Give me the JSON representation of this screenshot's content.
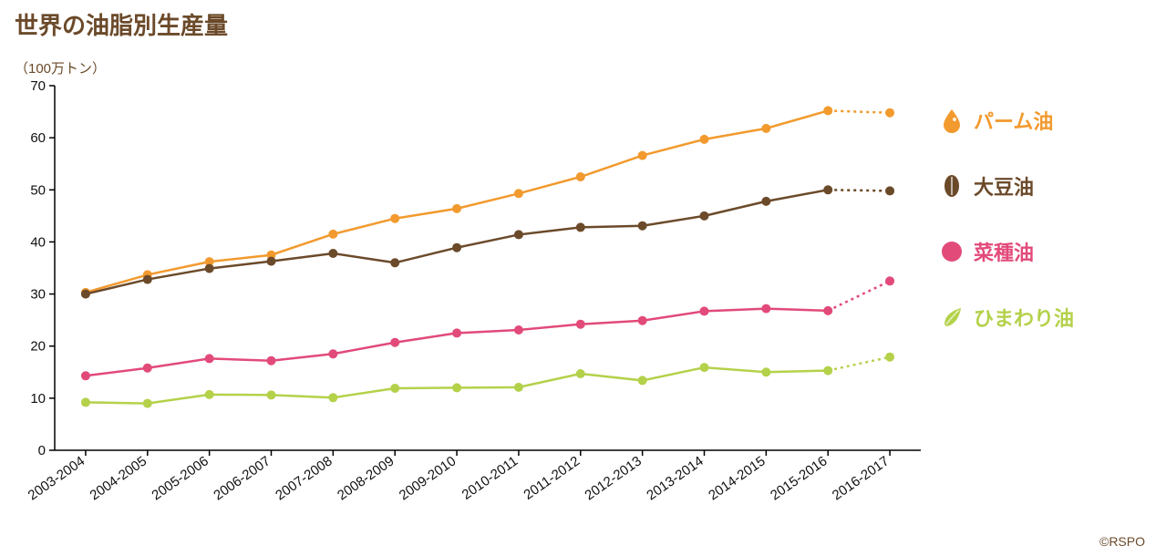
{
  "title": "世界の油脂別生産量",
  "y_axis_label": "（100万トン）",
  "copyright": "©RSPO",
  "chart": {
    "type": "line",
    "background_color": "#ffffff",
    "axis_color": "#000000",
    "ylim": [
      0,
      70
    ],
    "ytick_step": 10,
    "yticks": [
      0,
      10,
      20,
      30,
      40,
      50,
      60,
      70
    ],
    "ytick_fontsize": 15,
    "categories": [
      "2003-2004",
      "2004-2005",
      "2005-2006",
      "2006-2007",
      "2007-2008",
      "2008-2009",
      "2009-2010",
      "2010-2011",
      "2011-2012",
      "2012-2013",
      "2013-2014",
      "2014-2015",
      "2015-2016",
      "2016-2017"
    ],
    "xtick_fontsize": 15,
    "xtick_rotation": -35,
    "line_width": 2.5,
    "marker_size": 5,
    "marker_style": "circle",
    "dashed_last_segment": true,
    "series": [
      {
        "id": "palm",
        "label": "パーム油",
        "color": "#f29a2e",
        "values": [
          30.3,
          33.7,
          36.2,
          37.5,
          41.5,
          44.5,
          46.4,
          49.3,
          52.5,
          56.6,
          59.7,
          61.8,
          65.2,
          64.8
        ]
      },
      {
        "id": "soy",
        "label": "大豆油",
        "color": "#6b4a2a",
        "values": [
          30.0,
          32.8,
          34.9,
          36.3,
          37.8,
          36.0,
          38.9,
          41.4,
          42.8,
          43.1,
          45.0,
          47.8,
          50.0,
          49.8
        ]
      },
      {
        "id": "rapeseed",
        "label": "菜種油",
        "color": "#e24a7a",
        "values": [
          14.3,
          15.8,
          17.6,
          17.2,
          18.5,
          20.7,
          22.5,
          23.1,
          24.2,
          24.9,
          26.7,
          27.2,
          26.8,
          32.5
        ]
      },
      {
        "id": "sunflower",
        "label": "ひまわり油",
        "color": "#b4d14a",
        "values": [
          9.2,
          9.0,
          10.7,
          10.6,
          10.1,
          11.9,
          12.0,
          12.1,
          14.7,
          13.4,
          15.9,
          15.0,
          15.3,
          17.9
        ]
      }
    ]
  },
  "legend": {
    "position": "right",
    "fontsize": 22,
    "font_weight": 700,
    "item_spacing": 72,
    "items": [
      {
        "id": "palm",
        "label": "パーム油",
        "color": "#f29a2e",
        "icon": "droplet"
      },
      {
        "id": "soy",
        "label": "大豆油",
        "color": "#6b4a2a",
        "icon": "bean"
      },
      {
        "id": "rapeseed",
        "label": "菜種油",
        "color": "#e24a7a",
        "icon": "circle"
      },
      {
        "id": "sunflower",
        "label": "ひまわり油",
        "color": "#b4d14a",
        "icon": "leaf"
      }
    ]
  }
}
